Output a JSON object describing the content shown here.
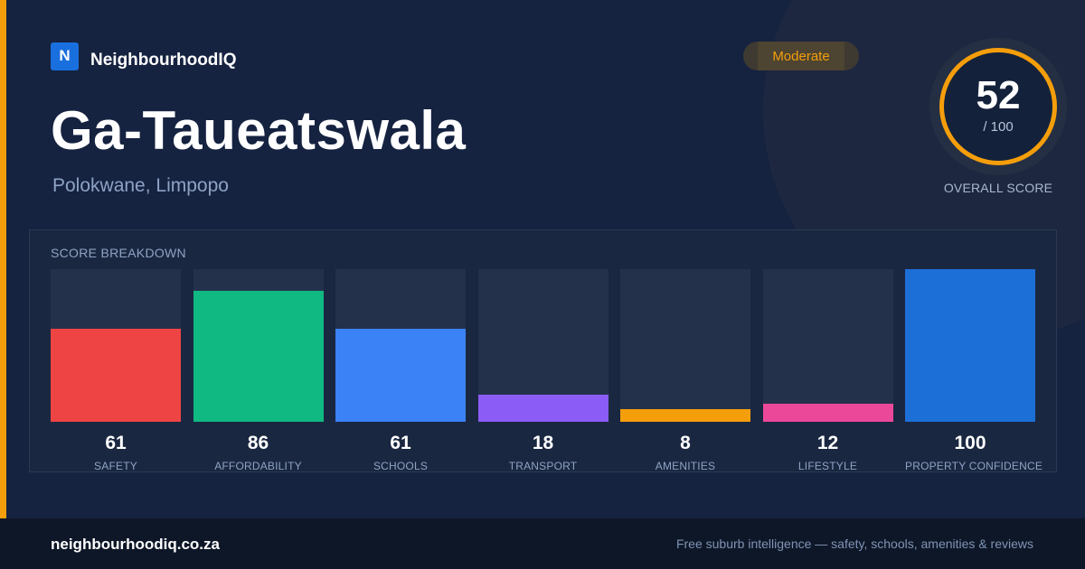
{
  "brand": {
    "logo_letter": "N",
    "name": "NeighbourhoodIQ"
  },
  "suburb": {
    "name": "Ga-Taueatswala",
    "location": "Polokwane, Limpopo"
  },
  "badge": {
    "label": "Moderate",
    "color": "#f59e0b"
  },
  "overall": {
    "score": "52",
    "max": "/ 100",
    "label": "OVERALL SCORE"
  },
  "breakdown": {
    "title": "SCORE BREAKDOWN",
    "items": [
      {
        "value": 61,
        "label": "SAFETY",
        "color": "#ef4444"
      },
      {
        "value": 86,
        "label": "AFFORDABILITY",
        "color": "#10b981"
      },
      {
        "value": 61,
        "label": "SCHOOLS",
        "color": "#3b82f6"
      },
      {
        "value": 18,
        "label": "TRANSPORT",
        "color": "#8b5cf6"
      },
      {
        "value": 8,
        "label": "AMENITIES",
        "color": "#f59e0b"
      },
      {
        "value": 12,
        "label": "LIFESTYLE",
        "color": "#ec4899"
      },
      {
        "value": 100,
        "label": "PROPERTY CONFIDENCE",
        "color": "#1d6fd8"
      }
    ]
  },
  "footer": {
    "url": "neighbourhoodiq.co.za",
    "tagline": "Free suburb intelligence — safety, schools, amenities & reviews"
  }
}
